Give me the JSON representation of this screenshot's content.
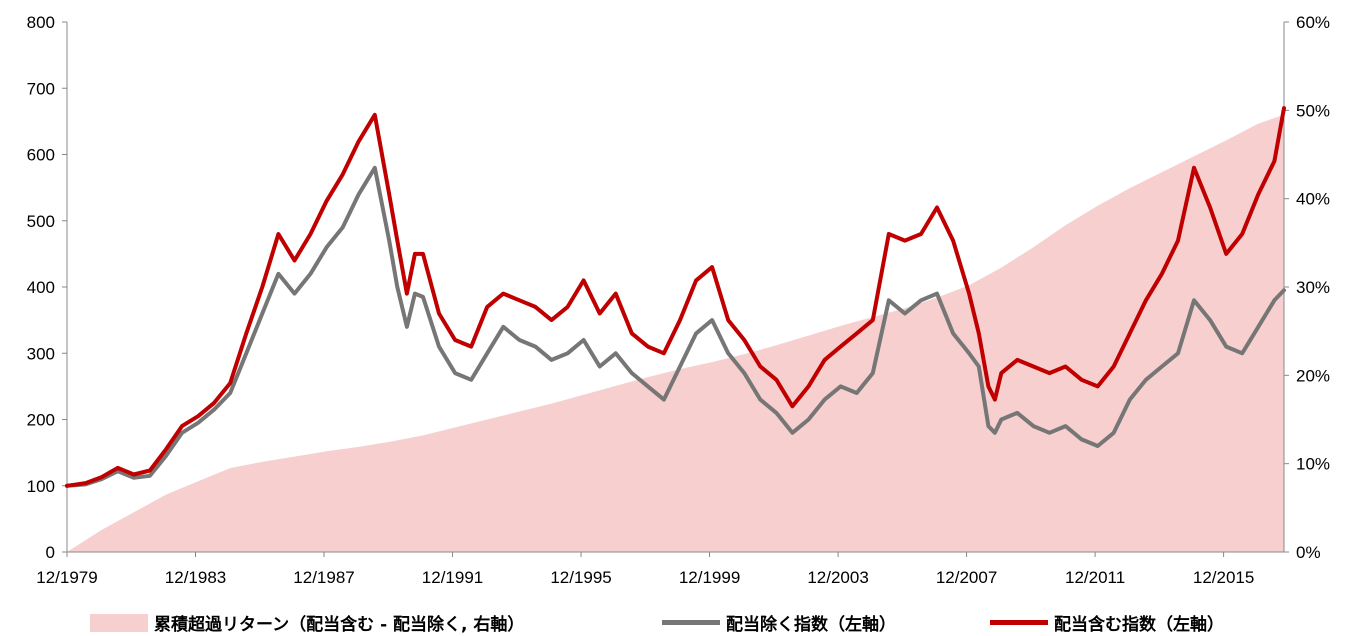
{
  "chart_data": {
    "type": "line",
    "x_tick_labels": [
      "12/1979",
      "12/1983",
      "12/1987",
      "12/1991",
      "12/1995",
      "12/1999",
      "12/2003",
      "12/2007",
      "12/2011",
      "12/2015"
    ],
    "y_left": {
      "min": 0,
      "max": 800,
      "step": 100,
      "tick_labels": [
        "0",
        "100",
        "200",
        "300",
        "400",
        "500",
        "600",
        "700",
        "800"
      ]
    },
    "y_right": {
      "min": 0,
      "max": 0.6,
      "tick_labels": [
        "0%",
        "10%",
        "20%",
        "30%",
        "40%",
        "50%",
        "60%"
      ]
    },
    "x_range": [
      1979.92,
      2017.8
    ],
    "series": [
      {
        "name": "累積超過リターン（配当含む - 配当除く, 右軸）",
        "axis": "right",
        "kind": "area",
        "color": "#f7cfcf",
        "x": [
          1979.92,
          1981,
          1982,
          1983,
          1984,
          1985,
          1986,
          1987,
          1988,
          1989,
          1990,
          1991,
          1992,
          1993,
          1994,
          1995,
          1996,
          1997,
          1998,
          1999,
          2000,
          2001,
          2002,
          2003,
          2004,
          2005,
          2006,
          2007,
          2008,
          2009,
          2010,
          2011,
          2012,
          2013,
          2014,
          2015,
          2016,
          2017,
          2017.8
        ],
        "values": [
          0.0,
          0.025,
          0.045,
          0.065,
          0.08,
          0.095,
          0.102,
          0.108,
          0.114,
          0.119,
          0.125,
          0.132,
          0.141,
          0.15,
          0.159,
          0.168,
          0.178,
          0.188,
          0.198,
          0.207,
          0.215,
          0.224,
          0.234,
          0.245,
          0.256,
          0.266,
          0.276,
          0.288,
          0.302,
          0.322,
          0.345,
          0.37,
          0.392,
          0.412,
          0.43,
          0.448,
          0.466,
          0.485,
          0.495
        ]
      },
      {
        "name": "配当除く指数（左軸）",
        "axis": "left",
        "kind": "line",
        "color": "#767676",
        "x": [
          1979.92,
          1980.5,
          1981,
          1981.5,
          1982,
          1982.5,
          1983,
          1983.5,
          1984,
          1984.5,
          1985,
          1985.5,
          1986,
          1986.5,
          1987,
          1987.5,
          1988,
          1988.5,
          1989,
          1989.5,
          1989.95,
          1990.2,
          1990.5,
          1990.75,
          1991,
          1991.5,
          1992,
          1992.5,
          1993,
          1993.5,
          1994,
          1994.5,
          1995,
          1995.5,
          1996,
          1996.5,
          1997,
          1997.5,
          1998,
          1998.5,
          1999,
          1999.5,
          2000,
          2000.5,
          2001,
          2001.5,
          2002,
          2002.5,
          2003,
          2003.5,
          2004,
          2004.5,
          2005,
          2005.5,
          2006,
          2006.5,
          2007,
          2007.5,
          2008,
          2008.3,
          2008.6,
          2008.8,
          2009,
          2009.5,
          2010,
          2010.5,
          2011,
          2011.5,
          2012,
          2012.5,
          2013,
          2013.5,
          2014,
          2014.5,
          2015,
          2015.5,
          2016,
          2016.5,
          2017,
          2017.5,
          2017.8
        ],
        "values": [
          100,
          102,
          110,
          122,
          112,
          115,
          145,
          180,
          195,
          215,
          240,
          300,
          360,
          420,
          390,
          420,
          460,
          490,
          540,
          580,
          470,
          400,
          340,
          390,
          385,
          310,
          270,
          260,
          300,
          340,
          320,
          310,
          290,
          300,
          320,
          280,
          300,
          270,
          250,
          230,
          280,
          330,
          350,
          300,
          270,
          230,
          210,
          180,
          200,
          230,
          250,
          240,
          270,
          380,
          360,
          380,
          390,
          330,
          300,
          280,
          190,
          180,
          200,
          210,
          190,
          180,
          190,
          170,
          160,
          180,
          230,
          260,
          280,
          300,
          380,
          350,
          310,
          300,
          340,
          380,
          395
        ]
      },
      {
        "name": "配当含む指数（左軸）",
        "axis": "left",
        "kind": "line",
        "color": "#c00000",
        "x": [
          1979.92,
          1980.5,
          1981,
          1981.5,
          1982,
          1982.5,
          1983,
          1983.5,
          1984,
          1984.5,
          1985,
          1985.5,
          1986,
          1986.5,
          1987,
          1987.5,
          1988,
          1988.5,
          1989,
          1989.5,
          1989.95,
          1990.2,
          1990.5,
          1990.75,
          1991,
          1991.5,
          1992,
          1992.5,
          1993,
          1993.5,
          1994,
          1994.5,
          1995,
          1995.5,
          1996,
          1996.5,
          1997,
          1997.5,
          1998,
          1998.5,
          1999,
          1999.5,
          2000,
          2000.5,
          2001,
          2001.5,
          2002,
          2002.5,
          2003,
          2003.5,
          2004,
          2004.5,
          2005,
          2005.5,
          2006,
          2006.5,
          2007,
          2007.5,
          2008,
          2008.3,
          2008.6,
          2008.8,
          2009,
          2009.5,
          2010,
          2010.5,
          2011,
          2011.5,
          2012,
          2012.5,
          2013,
          2013.5,
          2014,
          2014.5,
          2015,
          2015.5,
          2016,
          2016.5,
          2017,
          2017.5,
          2017.8
        ],
        "values": [
          100,
          104,
          113,
          127,
          117,
          123,
          155,
          190,
          205,
          225,
          255,
          330,
          400,
          480,
          440,
          480,
          530,
          570,
          620,
          660,
          540,
          470,
          390,
          450,
          450,
          360,
          320,
          310,
          370,
          390,
          380,
          370,
          350,
          370,
          410,
          360,
          390,
          330,
          310,
          300,
          350,
          410,
          430,
          350,
          320,
          280,
          260,
          220,
          250,
          290,
          310,
          330,
          350,
          480,
          470,
          480,
          520,
          470,
          390,
          330,
          250,
          230,
          270,
          290,
          280,
          270,
          280,
          260,
          250,
          280,
          330,
          380,
          420,
          470,
          580,
          520,
          450,
          480,
          540,
          590,
          670
        ]
      }
    ]
  },
  "legend": {
    "area_label": "累積超過リターン（配当含む - 配当除く, 右軸）",
    "gray_label": "配当除く指数（左軸）",
    "red_label": "配当含む指数（左軸）"
  }
}
